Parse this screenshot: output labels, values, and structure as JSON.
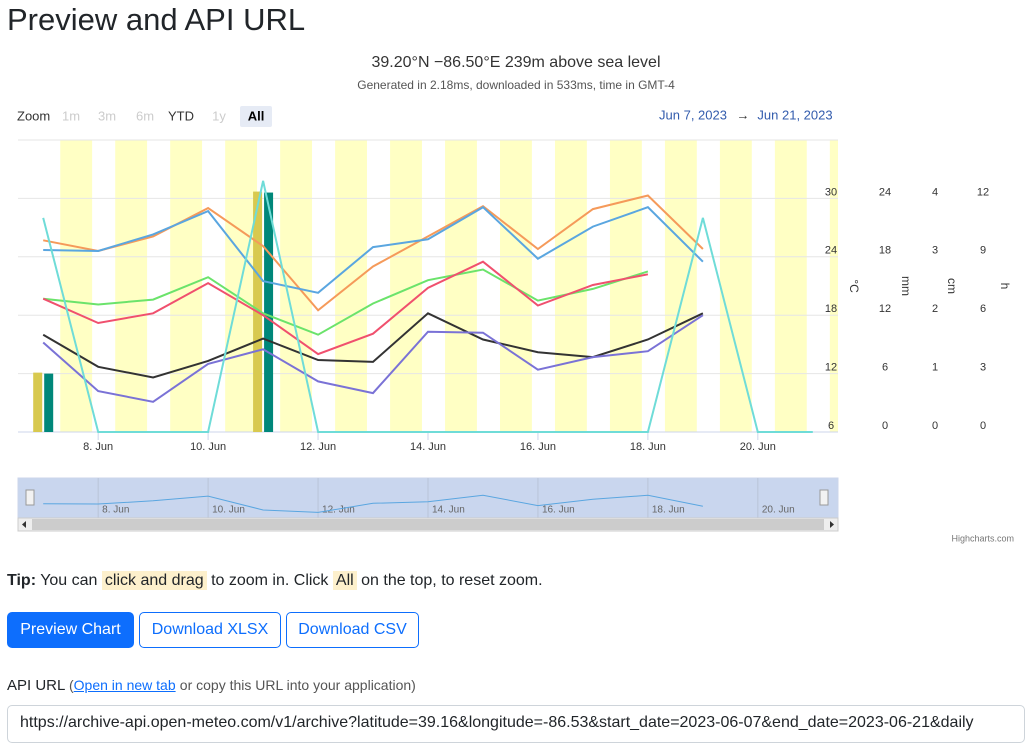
{
  "header": {
    "title": "Preview and API URL"
  },
  "chart_data": {
    "type": "line",
    "title": "39.20°N −86.50°E 239m above sea level",
    "subtitle": "Generated in 2.18ms, downloaded in 533ms, time in GMT-4",
    "range_selector": {
      "label": "Zoom",
      "buttons": [
        "1m",
        "3m",
        "6m",
        "YTD",
        "1y",
        "All"
      ],
      "selected": 5,
      "from": "Jun 7, 2023",
      "separator": "→",
      "to": "Jun 21, 2023"
    },
    "x": [
      "2023-06-07",
      "2023-06-08",
      "2023-06-09",
      "2023-06-10",
      "2023-06-11",
      "2023-06-12",
      "2023-06-13",
      "2023-06-14",
      "2023-06-15",
      "2023-06-16",
      "2023-06-17",
      "2023-06-18",
      "2023-06-19",
      "2023-06-20",
      "2023-06-21"
    ],
    "xlim": [
      "2023-06-06T13:00",
      "2023-06-21T11:00"
    ],
    "xticks": [
      {
        "value": "2023-06-08",
        "label": "8. Jun"
      },
      {
        "value": "2023-06-10",
        "label": "10. Jun"
      },
      {
        "value": "2023-06-12",
        "label": "12. Jun"
      },
      {
        "value": "2023-06-14",
        "label": "14. Jun"
      },
      {
        "value": "2023-06-16",
        "label": "16. Jun"
      },
      {
        "value": "2023-06-18",
        "label": "18. Jun"
      },
      {
        "value": "2023-06-20",
        "label": "20. Jun"
      }
    ],
    "ylim": [
      6,
      36
    ],
    "yticks": [
      6,
      12,
      18,
      24,
      30
    ],
    "ylabel": "°C",
    "y2lim": [
      0,
      30
    ],
    "y2ticks": [
      0,
      6,
      12,
      18,
      24
    ],
    "y2label": "mm",
    "y3lim": [
      0,
      5
    ],
    "y3ticks": [
      0,
      1,
      2,
      3,
      4
    ],
    "y3label": "cm",
    "y4lim": [
      0,
      15
    ],
    "y4ticks": [
      0,
      3,
      6,
      9,
      12
    ],
    "y4label": "h",
    "grid": true,
    "series": [
      {
        "type": "bar",
        "axis": "y2",
        "color": "#d8c94f",
        "values": [
          6.1,
          0,
          0,
          0,
          24.7,
          0,
          0,
          0,
          0,
          0,
          0,
          0,
          0,
          null,
          null
        ]
      },
      {
        "type": "bar",
        "axis": "y3",
        "color": "#00877a",
        "values": [
          1.0,
          0,
          0,
          0,
          4.1,
          0,
          0,
          0,
          0,
          0,
          0,
          0,
          0,
          null,
          null
        ]
      },
      {
        "type": "line",
        "axis": "y",
        "color": "#f59a5a",
        "values": [
          25.7,
          24.6,
          26.1,
          29.0,
          25.1,
          18.5,
          23.0,
          26.1,
          29.2,
          24.8,
          28.9,
          30.3,
          24.8,
          null,
          null
        ]
      },
      {
        "type": "line",
        "axis": "y",
        "color": "#5aa6e0",
        "values": [
          24.7,
          24.6,
          26.3,
          28.7,
          21.5,
          20.3,
          25.0,
          25.8,
          29.1,
          23.8,
          27.1,
          29.1,
          23.5,
          null,
          null
        ]
      },
      {
        "type": "line",
        "axis": "y",
        "color": "#6be36b",
        "values": [
          19.7,
          19.1,
          19.6,
          21.9,
          18.2,
          16.0,
          19.2,
          21.6,
          22.7,
          19.5,
          20.7,
          22.5,
          null,
          null,
          null
        ]
      },
      {
        "type": "line",
        "axis": "y",
        "color": "#f0506e",
        "values": [
          19.7,
          17.2,
          18.2,
          21.3,
          18.0,
          14.0,
          16.1,
          20.8,
          23.5,
          19.0,
          21.1,
          22.2,
          null,
          null,
          null
        ]
      },
      {
        "type": "line",
        "axis": "y",
        "color": "#333333",
        "values": [
          16.0,
          12.7,
          11.6,
          13.3,
          15.6,
          13.4,
          13.2,
          18.2,
          15.5,
          14.2,
          13.7,
          15.5,
          18.2,
          null,
          null
        ]
      },
      {
        "type": "line",
        "axis": "y",
        "color": "#7a72d6",
        "values": [
          15.2,
          10.2,
          9.1,
          13.0,
          14.5,
          11.2,
          10.0,
          16.3,
          16.2,
          12.4,
          13.7,
          14.3,
          18.0,
          null,
          null
        ]
      },
      {
        "type": "line",
        "axis": "y4",
        "color": "#6fdcd8",
        "values": [
          11.0,
          0,
          0,
          0,
          12.9,
          0,
          0,
          0,
          0,
          0,
          0,
          0,
          11.0,
          0,
          0
        ]
      }
    ],
    "credits": "Highcharts.com"
  },
  "tip": {
    "label": "Tip:",
    "parts": [
      "You can",
      "click and drag",
      "to zoom in. Click",
      "All",
      "on the top, to reset zoom."
    ]
  },
  "buttons": [
    "Preview Chart",
    "Download XLSX",
    "Download CSV"
  ],
  "api": {
    "label": "API URL",
    "prefix": "(",
    "link": "Open in new tab",
    "note": "or copy this URL into your application)",
    "url": "https://archive-api.open-meteo.com/v1/archive?latitude=39.16&longitude=-86.53&start_date=2023-06-07&end_date=2023-06-21&daily"
  }
}
